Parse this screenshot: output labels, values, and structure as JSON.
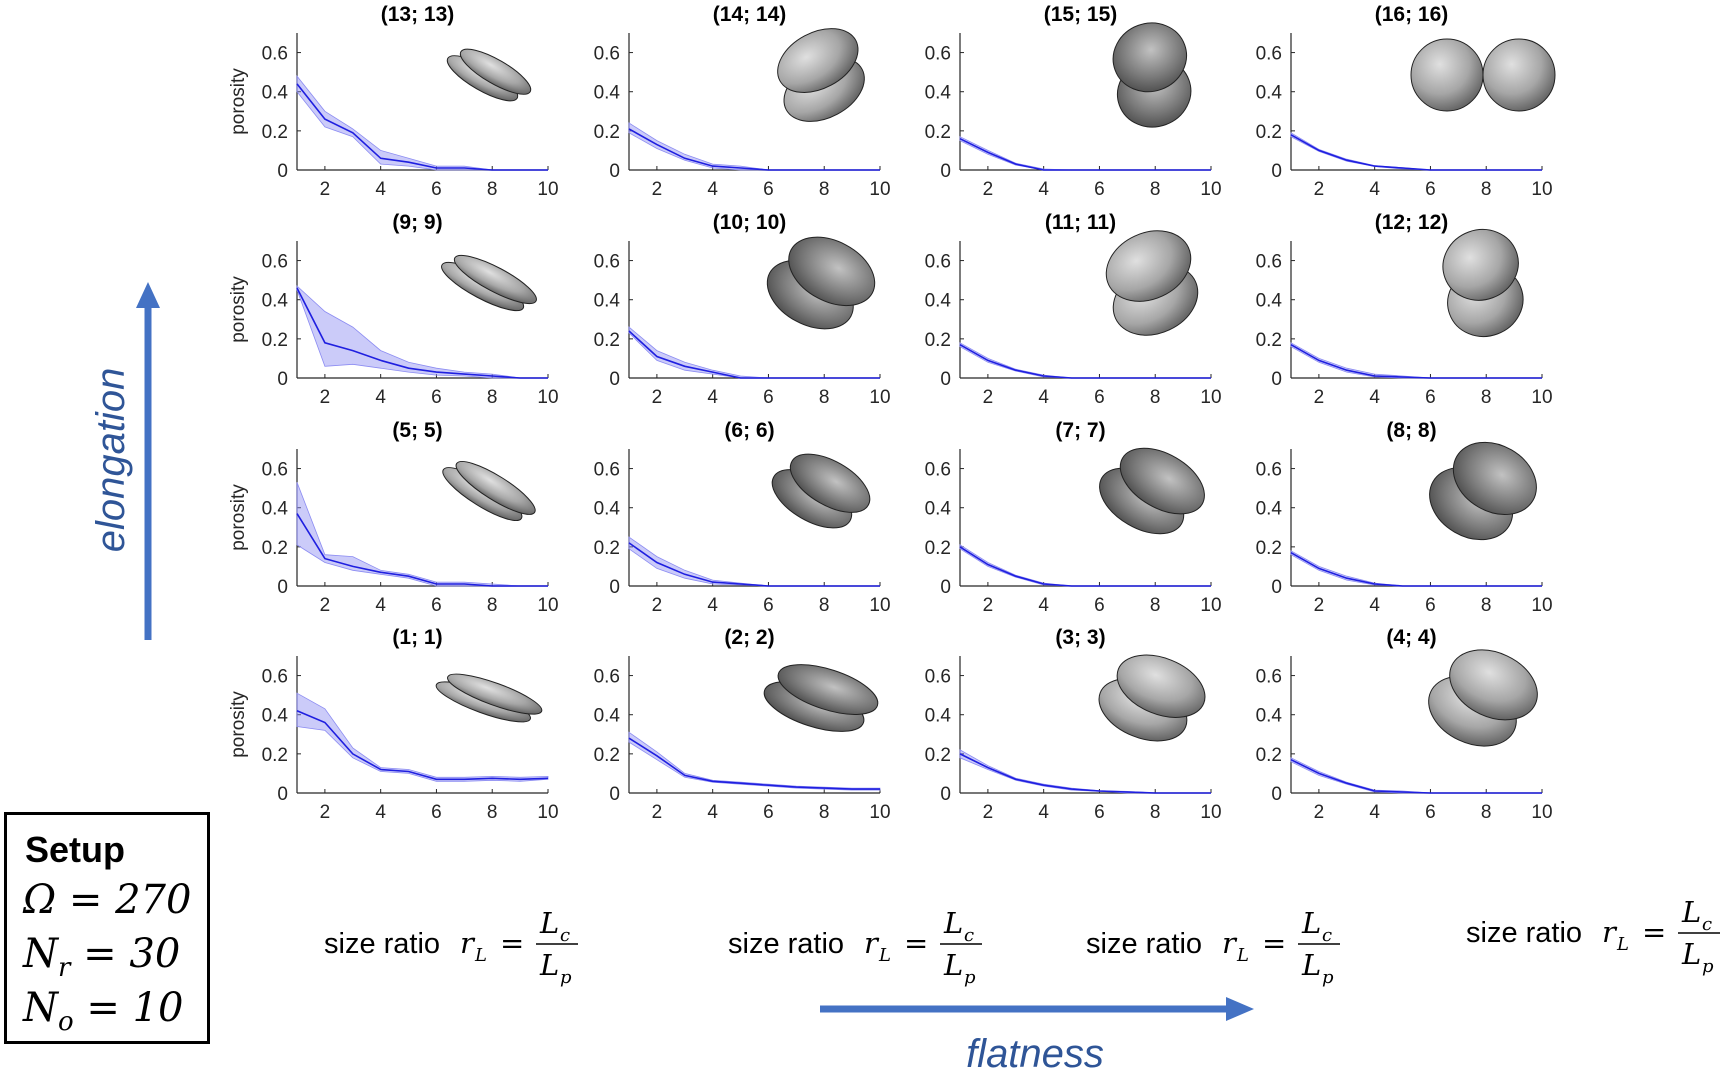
{
  "chart_data": [
    {
      "type": "line",
      "title": "(13; 13)",
      "ylabel": "porosity",
      "xlim": [
        1,
        10
      ],
      "ylim": [
        0,
        0.7
      ],
      "xticks": [
        2,
        4,
        6,
        8,
        10
      ],
      "yticks": [
        0,
        0.2,
        0.4,
        0.6
      ],
      "series": [
        {
          "x": [
            1,
            2,
            3,
            4,
            5,
            6,
            7,
            8,
            9,
            10
          ],
          "values": [
            0.44,
            0.26,
            0.19,
            0.06,
            0.04,
            0.01,
            0.01,
            0.0,
            0.0,
            0.0
          ],
          "lower": [
            0.4,
            0.22,
            0.17,
            0.03,
            0.02,
            0.0,
            0.0,
            0.0,
            0.0,
            0.0
          ],
          "upper": [
            0.48,
            0.3,
            0.21,
            0.1,
            0.06,
            0.02,
            0.02,
            0.0,
            0.0,
            0.0
          ]
        }
      ]
    },
    {
      "type": "line",
      "title": "(14; 14)",
      "xlim": [
        1,
        10
      ],
      "ylim": [
        0,
        0.7
      ],
      "xticks": [
        2,
        4,
        6,
        8,
        10
      ],
      "yticks": [
        0,
        0.2,
        0.4,
        0.6
      ],
      "series": [
        {
          "x": [
            1,
            2,
            3,
            4,
            5,
            6,
            7,
            8,
            9,
            10
          ],
          "values": [
            0.21,
            0.13,
            0.06,
            0.02,
            0.01,
            0.0,
            0.0,
            0.0,
            0.0,
            0.0
          ],
          "lower": [
            0.19,
            0.11,
            0.05,
            0.01,
            0.0,
            0.0,
            0.0,
            0.0,
            0.0,
            0.0
          ],
          "upper": [
            0.24,
            0.15,
            0.08,
            0.03,
            0.02,
            0.0,
            0.0,
            0.0,
            0.0,
            0.0
          ]
        }
      ]
    },
    {
      "type": "line",
      "title": "(15; 15)",
      "xlim": [
        1,
        10
      ],
      "ylim": [
        0,
        0.7
      ],
      "xticks": [
        2,
        4,
        6,
        8,
        10
      ],
      "yticks": [
        0,
        0.2,
        0.4,
        0.6
      ],
      "series": [
        {
          "x": [
            1,
            2,
            3,
            4,
            5,
            6,
            7,
            8,
            9,
            10
          ],
          "values": [
            0.16,
            0.09,
            0.03,
            0.0,
            0.0,
            0.0,
            0.0,
            0.0,
            0.0,
            0.0
          ],
          "lower": [
            0.15,
            0.08,
            0.025,
            0.0,
            0.0,
            0.0,
            0.0,
            0.0,
            0.0,
            0.0
          ],
          "upper": [
            0.17,
            0.1,
            0.035,
            0.005,
            0.0,
            0.0,
            0.0,
            0.0,
            0.0,
            0.0
          ]
        }
      ]
    },
    {
      "type": "line",
      "title": "(16; 16)",
      "xlim": [
        1,
        10
      ],
      "ylim": [
        0,
        0.7
      ],
      "xticks": [
        2,
        4,
        6,
        8,
        10
      ],
      "yticks": [
        0,
        0.2,
        0.4,
        0.6
      ],
      "series": [
        {
          "x": [
            1,
            2,
            3,
            4,
            5,
            6,
            7,
            8,
            9,
            10
          ],
          "values": [
            0.18,
            0.1,
            0.05,
            0.02,
            0.01,
            0.0,
            0.0,
            0.0,
            0.0,
            0.0
          ],
          "lower": [
            0.17,
            0.095,
            0.045,
            0.018,
            0.005,
            0.0,
            0.0,
            0.0,
            0.0,
            0.0
          ],
          "upper": [
            0.19,
            0.105,
            0.055,
            0.022,
            0.012,
            0.0,
            0.0,
            0.0,
            0.0,
            0.0
          ]
        }
      ]
    },
    {
      "type": "line",
      "title": "(9; 9)",
      "ylabel": "porosity",
      "xlim": [
        1,
        10
      ],
      "ylim": [
        0,
        0.7
      ],
      "xticks": [
        2,
        4,
        6,
        8,
        10
      ],
      "yticks": [
        0,
        0.2,
        0.4,
        0.6
      ],
      "series": [
        {
          "x": [
            1,
            2,
            3,
            4,
            5,
            6,
            7,
            8,
            9,
            10
          ],
          "values": [
            0.46,
            0.18,
            0.14,
            0.09,
            0.05,
            0.03,
            0.02,
            0.01,
            0.0,
            0.0
          ],
          "lower": [
            0.45,
            0.06,
            0.07,
            0.05,
            0.03,
            0.015,
            0.01,
            0.0,
            0.0,
            0.0
          ],
          "upper": [
            0.47,
            0.34,
            0.26,
            0.14,
            0.08,
            0.05,
            0.03,
            0.02,
            0.0,
            0.0
          ]
        }
      ]
    },
    {
      "type": "line",
      "title": "(10; 10)",
      "xlim": [
        1,
        10
      ],
      "ylim": [
        0,
        0.7
      ],
      "xticks": [
        2,
        4,
        6,
        8,
        10
      ],
      "yticks": [
        0,
        0.2,
        0.4,
        0.6
      ],
      "series": [
        {
          "x": [
            1,
            2,
            3,
            4,
            5,
            6,
            7,
            8,
            9,
            10
          ],
          "values": [
            0.24,
            0.11,
            0.06,
            0.03,
            0.0,
            0.0,
            0.0,
            0.0,
            0.0,
            0.0
          ],
          "lower": [
            0.23,
            0.09,
            0.04,
            0.02,
            0.0,
            0.0,
            0.0,
            0.0,
            0.0,
            0.0
          ],
          "upper": [
            0.26,
            0.14,
            0.08,
            0.04,
            0.01,
            0.0,
            0.0,
            0.0,
            0.0,
            0.0
          ]
        }
      ]
    },
    {
      "type": "line",
      "title": "(11; 11)",
      "xlim": [
        1,
        10
      ],
      "ylim": [
        0,
        0.7
      ],
      "xticks": [
        2,
        4,
        6,
        8,
        10
      ],
      "yticks": [
        0,
        0.2,
        0.4,
        0.6
      ],
      "series": [
        {
          "x": [
            1,
            2,
            3,
            4,
            5,
            6,
            7,
            8,
            9,
            10
          ],
          "values": [
            0.17,
            0.09,
            0.04,
            0.01,
            0.0,
            0.0,
            0.0,
            0.0,
            0.0,
            0.0
          ],
          "lower": [
            0.16,
            0.08,
            0.035,
            0.005,
            0.0,
            0.0,
            0.0,
            0.0,
            0.0,
            0.0
          ],
          "upper": [
            0.18,
            0.1,
            0.045,
            0.015,
            0.0,
            0.0,
            0.0,
            0.0,
            0.0,
            0.0
          ]
        }
      ]
    },
    {
      "type": "line",
      "title": "(12; 12)",
      "xlim": [
        1,
        10
      ],
      "ylim": [
        0,
        0.7
      ],
      "xticks": [
        2,
        4,
        6,
        8,
        10
      ],
      "yticks": [
        0,
        0.2,
        0.4,
        0.6
      ],
      "series": [
        {
          "x": [
            1,
            2,
            3,
            4,
            5,
            6,
            7,
            8,
            9,
            10
          ],
          "values": [
            0.17,
            0.09,
            0.04,
            0.01,
            0.005,
            0.0,
            0.0,
            0.0,
            0.0,
            0.0
          ],
          "lower": [
            0.16,
            0.08,
            0.03,
            0.005,
            0.0,
            0.0,
            0.0,
            0.0,
            0.0,
            0.0
          ],
          "upper": [
            0.18,
            0.1,
            0.05,
            0.02,
            0.01,
            0.0,
            0.0,
            0.0,
            0.0,
            0.0
          ]
        }
      ]
    },
    {
      "type": "line",
      "title": "(5; 5)",
      "ylabel": "porosity",
      "xlim": [
        1,
        10
      ],
      "ylim": [
        0,
        0.7
      ],
      "xticks": [
        2,
        4,
        6,
        8,
        10
      ],
      "yticks": [
        0,
        0.2,
        0.4,
        0.6
      ],
      "series": [
        {
          "x": [
            1,
            2,
            3,
            4,
            5,
            6,
            7,
            8,
            9,
            10
          ],
          "values": [
            0.37,
            0.14,
            0.1,
            0.07,
            0.05,
            0.01,
            0.01,
            0.0,
            0.0,
            0.0
          ],
          "lower": [
            0.21,
            0.12,
            0.08,
            0.06,
            0.04,
            0.0,
            0.0,
            0.0,
            0.0,
            0.0
          ],
          "upper": [
            0.53,
            0.16,
            0.15,
            0.08,
            0.06,
            0.02,
            0.02,
            0.01,
            0.0,
            0.0
          ]
        }
      ]
    },
    {
      "type": "line",
      "title": "(6; 6)",
      "xlim": [
        1,
        10
      ],
      "ylim": [
        0,
        0.7
      ],
      "xticks": [
        2,
        4,
        6,
        8,
        10
      ],
      "yticks": [
        0,
        0.2,
        0.4,
        0.6
      ],
      "series": [
        {
          "x": [
            1,
            2,
            3,
            4,
            5,
            6,
            7,
            8,
            9,
            10
          ],
          "values": [
            0.22,
            0.12,
            0.06,
            0.02,
            0.01,
            0.0,
            0.0,
            0.0,
            0.0,
            0.0
          ],
          "lower": [
            0.19,
            0.09,
            0.04,
            0.01,
            0.005,
            0.0,
            0.0,
            0.0,
            0.0,
            0.0
          ],
          "upper": [
            0.25,
            0.15,
            0.08,
            0.03,
            0.015,
            0.0,
            0.0,
            0.0,
            0.0,
            0.0
          ]
        }
      ]
    },
    {
      "type": "line",
      "title": "(7; 7)",
      "xlim": [
        1,
        10
      ],
      "ylim": [
        0,
        0.7
      ],
      "xticks": [
        2,
        4,
        6,
        8,
        10
      ],
      "yticks": [
        0,
        0.2,
        0.4,
        0.6
      ],
      "series": [
        {
          "x": [
            1,
            2,
            3,
            4,
            5,
            6,
            7,
            8,
            9,
            10
          ],
          "values": [
            0.2,
            0.11,
            0.05,
            0.01,
            0.0,
            0.0,
            0.0,
            0.0,
            0.0,
            0.0
          ],
          "lower": [
            0.19,
            0.1,
            0.045,
            0.005,
            0.0,
            0.0,
            0.0,
            0.0,
            0.0,
            0.0
          ],
          "upper": [
            0.21,
            0.12,
            0.055,
            0.015,
            0.0,
            0.0,
            0.0,
            0.0,
            0.0,
            0.0
          ]
        }
      ]
    },
    {
      "type": "line",
      "title": "(8; 8)",
      "xlim": [
        1,
        10
      ],
      "ylim": [
        0,
        0.7
      ],
      "xticks": [
        2,
        4,
        6,
        8,
        10
      ],
      "yticks": [
        0,
        0.2,
        0.4,
        0.6
      ],
      "series": [
        {
          "x": [
            1,
            2,
            3,
            4,
            5,
            6,
            7,
            8,
            9,
            10
          ],
          "values": [
            0.17,
            0.09,
            0.04,
            0.01,
            0.0,
            0.0,
            0.0,
            0.0,
            0.0,
            0.0
          ],
          "lower": [
            0.16,
            0.08,
            0.03,
            0.005,
            0.0,
            0.0,
            0.0,
            0.0,
            0.0,
            0.0
          ],
          "upper": [
            0.18,
            0.1,
            0.05,
            0.015,
            0.0,
            0.0,
            0.0,
            0.0,
            0.0,
            0.0
          ]
        }
      ]
    },
    {
      "type": "line",
      "title": "(1; 1)",
      "ylabel": "porosity",
      "xlim": [
        1,
        10
      ],
      "ylim": [
        0,
        0.7
      ],
      "xticks": [
        2,
        4,
        6,
        8,
        10
      ],
      "yticks": [
        0,
        0.2,
        0.4,
        0.6
      ],
      "series": [
        {
          "x": [
            1,
            2,
            3,
            4,
            5,
            6,
            7,
            8,
            9,
            10
          ],
          "values": [
            0.42,
            0.36,
            0.2,
            0.12,
            0.11,
            0.07,
            0.07,
            0.075,
            0.07,
            0.075
          ],
          "lower": [
            0.34,
            0.32,
            0.18,
            0.11,
            0.1,
            0.06,
            0.06,
            0.065,
            0.06,
            0.07
          ],
          "upper": [
            0.51,
            0.43,
            0.23,
            0.13,
            0.12,
            0.08,
            0.08,
            0.085,
            0.08,
            0.085
          ]
        }
      ]
    },
    {
      "type": "line",
      "title": "(2; 2)",
      "xlim": [
        1,
        10
      ],
      "ylim": [
        0,
        0.7
      ],
      "xticks": [
        2,
        4,
        6,
        8,
        10
      ],
      "yticks": [
        0,
        0.2,
        0.4,
        0.6
      ],
      "series": [
        {
          "x": [
            1,
            2,
            3,
            4,
            5,
            6,
            7,
            8,
            9,
            10
          ],
          "values": [
            0.28,
            0.19,
            0.09,
            0.06,
            0.05,
            0.04,
            0.03,
            0.025,
            0.02,
            0.02
          ],
          "lower": [
            0.26,
            0.17,
            0.08,
            0.055,
            0.045,
            0.035,
            0.025,
            0.02,
            0.015,
            0.015
          ],
          "upper": [
            0.31,
            0.21,
            0.1,
            0.065,
            0.055,
            0.045,
            0.035,
            0.03,
            0.025,
            0.025
          ]
        }
      ]
    },
    {
      "type": "line",
      "title": "(3; 3)",
      "xlim": [
        1,
        10
      ],
      "ylim": [
        0,
        0.7
      ],
      "xticks": [
        2,
        4,
        6,
        8,
        10
      ],
      "yticks": [
        0,
        0.2,
        0.4,
        0.6
      ],
      "series": [
        {
          "x": [
            1,
            2,
            3,
            4,
            5,
            6,
            7,
            8,
            9,
            10
          ],
          "values": [
            0.2,
            0.13,
            0.07,
            0.04,
            0.02,
            0.01,
            0.005,
            0.0,
            0.0,
            0.0
          ],
          "lower": [
            0.18,
            0.12,
            0.065,
            0.035,
            0.015,
            0.008,
            0.0,
            0.0,
            0.0,
            0.0
          ],
          "upper": [
            0.22,
            0.14,
            0.075,
            0.045,
            0.025,
            0.012,
            0.008,
            0.0,
            0.0,
            0.0
          ]
        }
      ]
    },
    {
      "type": "line",
      "title": "(4; 4)",
      "xlim": [
        1,
        10
      ],
      "ylim": [
        0,
        0.7
      ],
      "xticks": [
        2,
        4,
        6,
        8,
        10
      ],
      "yticks": [
        0,
        0.2,
        0.4,
        0.6
      ],
      "series": [
        {
          "x": [
            1,
            2,
            3,
            4,
            5,
            6,
            7,
            8,
            9,
            10
          ],
          "values": [
            0.17,
            0.1,
            0.05,
            0.01,
            0.005,
            0.0,
            0.0,
            0.0,
            0.0,
            0.0
          ],
          "lower": [
            0.16,
            0.09,
            0.045,
            0.005,
            0.0,
            0.0,
            0.0,
            0.0,
            0.0,
            0.0
          ],
          "upper": [
            0.18,
            0.11,
            0.055,
            0.015,
            0.01,
            0.0,
            0.0,
            0.0,
            0.0,
            0.0
          ]
        }
      ]
    }
  ],
  "annotations": {
    "x_axis_label_prefix": "size ratio",
    "x_axis_label_var": "r",
    "x_axis_label_sub": "L",
    "ratio_numerator": "L",
    "ratio_numerator_sub": "c",
    "ratio_denominator": "L",
    "ratio_denominator_sub": "p",
    "equals": "=",
    "elongation_label": "elongation",
    "flatness_label": "flatness"
  },
  "setup": {
    "title": "Setup",
    "omega": "Ω = 270",
    "nr_var": "N",
    "nr_sub": "r",
    "nr_val": " = 30",
    "no_var": "N",
    "no_sub": "o",
    "no_val": " = 10"
  },
  "colors": {
    "line": "#1f1fe0",
    "band": "#8c8cf2",
    "arrow": "#4472c4",
    "arrow_text": "#2f5597",
    "axis": "#262626",
    "particle_light": "#d9d9d9",
    "particle_dark": "#333333"
  }
}
